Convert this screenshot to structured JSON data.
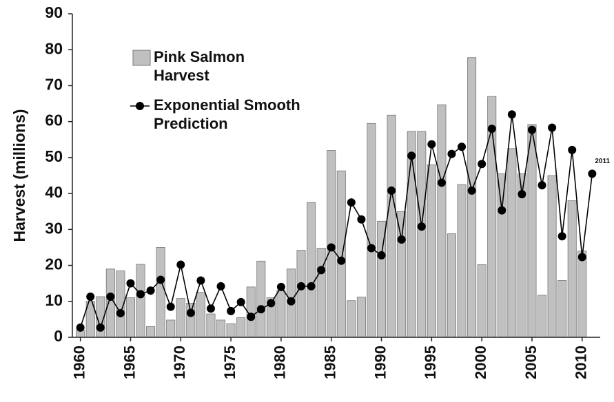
{
  "chart_data": {
    "type": "bar",
    "y_label": "Harvest (millions)",
    "annotation": "2011",
    "x": [
      1960,
      1961,
      1962,
      1963,
      1964,
      1965,
      1966,
      1967,
      1968,
      1969,
      1970,
      1971,
      1972,
      1973,
      1974,
      1975,
      1976,
      1977,
      1978,
      1979,
      1980,
      1981,
      1982,
      1983,
      1984,
      1985,
      1986,
      1987,
      1988,
      1989,
      1990,
      1991,
      1992,
      1993,
      1994,
      1995,
      1996,
      1997,
      1998,
      1999,
      2000,
      2001,
      2002,
      2003,
      2004,
      2005,
      2006,
      2007,
      2008,
      2009,
      2010,
      2011
    ],
    "xlim": [
      1959.2,
      2011.8
    ],
    "xticks": [
      1960,
      1965,
      1970,
      1975,
      1980,
      1985,
      1990,
      1995,
      2000,
      2005,
      2010
    ],
    "ylim": [
      0,
      90
    ],
    "yticks": [
      0,
      10,
      20,
      30,
      40,
      50,
      60,
      70,
      80,
      90
    ],
    "grid": false,
    "series": [
      {
        "name": "Pink Salmon Harvest",
        "type": "bar",
        "color": "#c0c0c0",
        "values": [
          2,
          10,
          11.3,
          19,
          18.5,
          11,
          20.3,
          3,
          25,
          4.8,
          10.8,
          9.5,
          12.5,
          6.5,
          4.8,
          3.8,
          5.5,
          14,
          21.2,
          11,
          13,
          19,
          24.2,
          37.5,
          24.8,
          52,
          46.3,
          10.2,
          11.2,
          59.5,
          32.3,
          61.8,
          35,
          57.3,
          57.3,
          48,
          64.7,
          28.8,
          42.5,
          77.8,
          20.2,
          67,
          45.5,
          52.5,
          45.5,
          59.2,
          11.7,
          45,
          15.8,
          38,
          24,
          null
        ]
      },
      {
        "name": "Exponential Smooth Prediction",
        "type": "line",
        "color": "#000000",
        "values": [
          2.7,
          11.3,
          2.7,
          11.3,
          6.7,
          15,
          12,
          13,
          16,
          8.5,
          20.2,
          6.8,
          15.8,
          8,
          14.2,
          7.3,
          9.8,
          5.7,
          7.8,
          9.5,
          14,
          10,
          14.2,
          14.2,
          18.7,
          25,
          21.3,
          37.5,
          32.8,
          24.8,
          22.8,
          40.8,
          27.2,
          50.5,
          30.8,
          53.7,
          43,
          51,
          53,
          40.8,
          48.2,
          58,
          35.3,
          62,
          39.8,
          57.7,
          42.3,
          58.3,
          28.1,
          52.1,
          22.3,
          45.5
        ]
      }
    ]
  }
}
